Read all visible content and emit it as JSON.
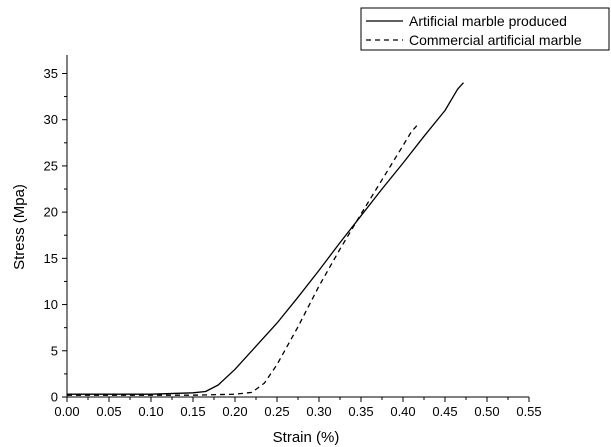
{
  "chart_data": {
    "type": "line",
    "xlabel": "Strain (%)",
    "ylabel": "Stress (Mpa)",
    "xlim": [
      0.0,
      0.55
    ],
    "ylim": [
      0,
      37
    ],
    "x_ticks": [
      "0.00",
      "0.05",
      "0.10",
      "0.15",
      "0.20",
      "0.25",
      "0.30",
      "0.35",
      "0.40",
      "0.45",
      "0.50",
      "0.55"
    ],
    "y_ticks": [
      "0",
      "5",
      "10",
      "15",
      "20",
      "25",
      "30",
      "35"
    ],
    "grid": false,
    "legend_position": "top-right",
    "series": [
      {
        "name": "Artificial marble produced",
        "style": "solid",
        "color": "#000000",
        "points": [
          [
            0.0,
            0.3
          ],
          [
            0.05,
            0.3
          ],
          [
            0.1,
            0.3
          ],
          [
            0.15,
            0.45
          ],
          [
            0.165,
            0.6
          ],
          [
            0.18,
            1.3
          ],
          [
            0.2,
            3.0
          ],
          [
            0.225,
            5.5
          ],
          [
            0.25,
            8.0
          ],
          [
            0.275,
            10.8
          ],
          [
            0.3,
            13.7
          ],
          [
            0.325,
            16.7
          ],
          [
            0.35,
            19.6
          ],
          [
            0.375,
            22.5
          ],
          [
            0.4,
            25.3
          ],
          [
            0.425,
            28.2
          ],
          [
            0.45,
            31.0
          ],
          [
            0.465,
            33.3
          ],
          [
            0.472,
            34.0
          ]
        ]
      },
      {
        "name": "Commercial artificial marble",
        "style": "dashed",
        "color": "#000000",
        "points": [
          [
            0.0,
            0.2
          ],
          [
            0.05,
            0.2
          ],
          [
            0.1,
            0.2
          ],
          [
            0.15,
            0.2
          ],
          [
            0.2,
            0.3
          ],
          [
            0.22,
            0.5
          ],
          [
            0.235,
            1.5
          ],
          [
            0.25,
            3.5
          ],
          [
            0.275,
            7.6
          ],
          [
            0.3,
            12.0
          ],
          [
            0.325,
            16.0
          ],
          [
            0.35,
            19.8
          ],
          [
            0.375,
            23.5
          ],
          [
            0.4,
            27.2
          ],
          [
            0.41,
            28.7
          ],
          [
            0.418,
            29.5
          ]
        ]
      }
    ]
  }
}
